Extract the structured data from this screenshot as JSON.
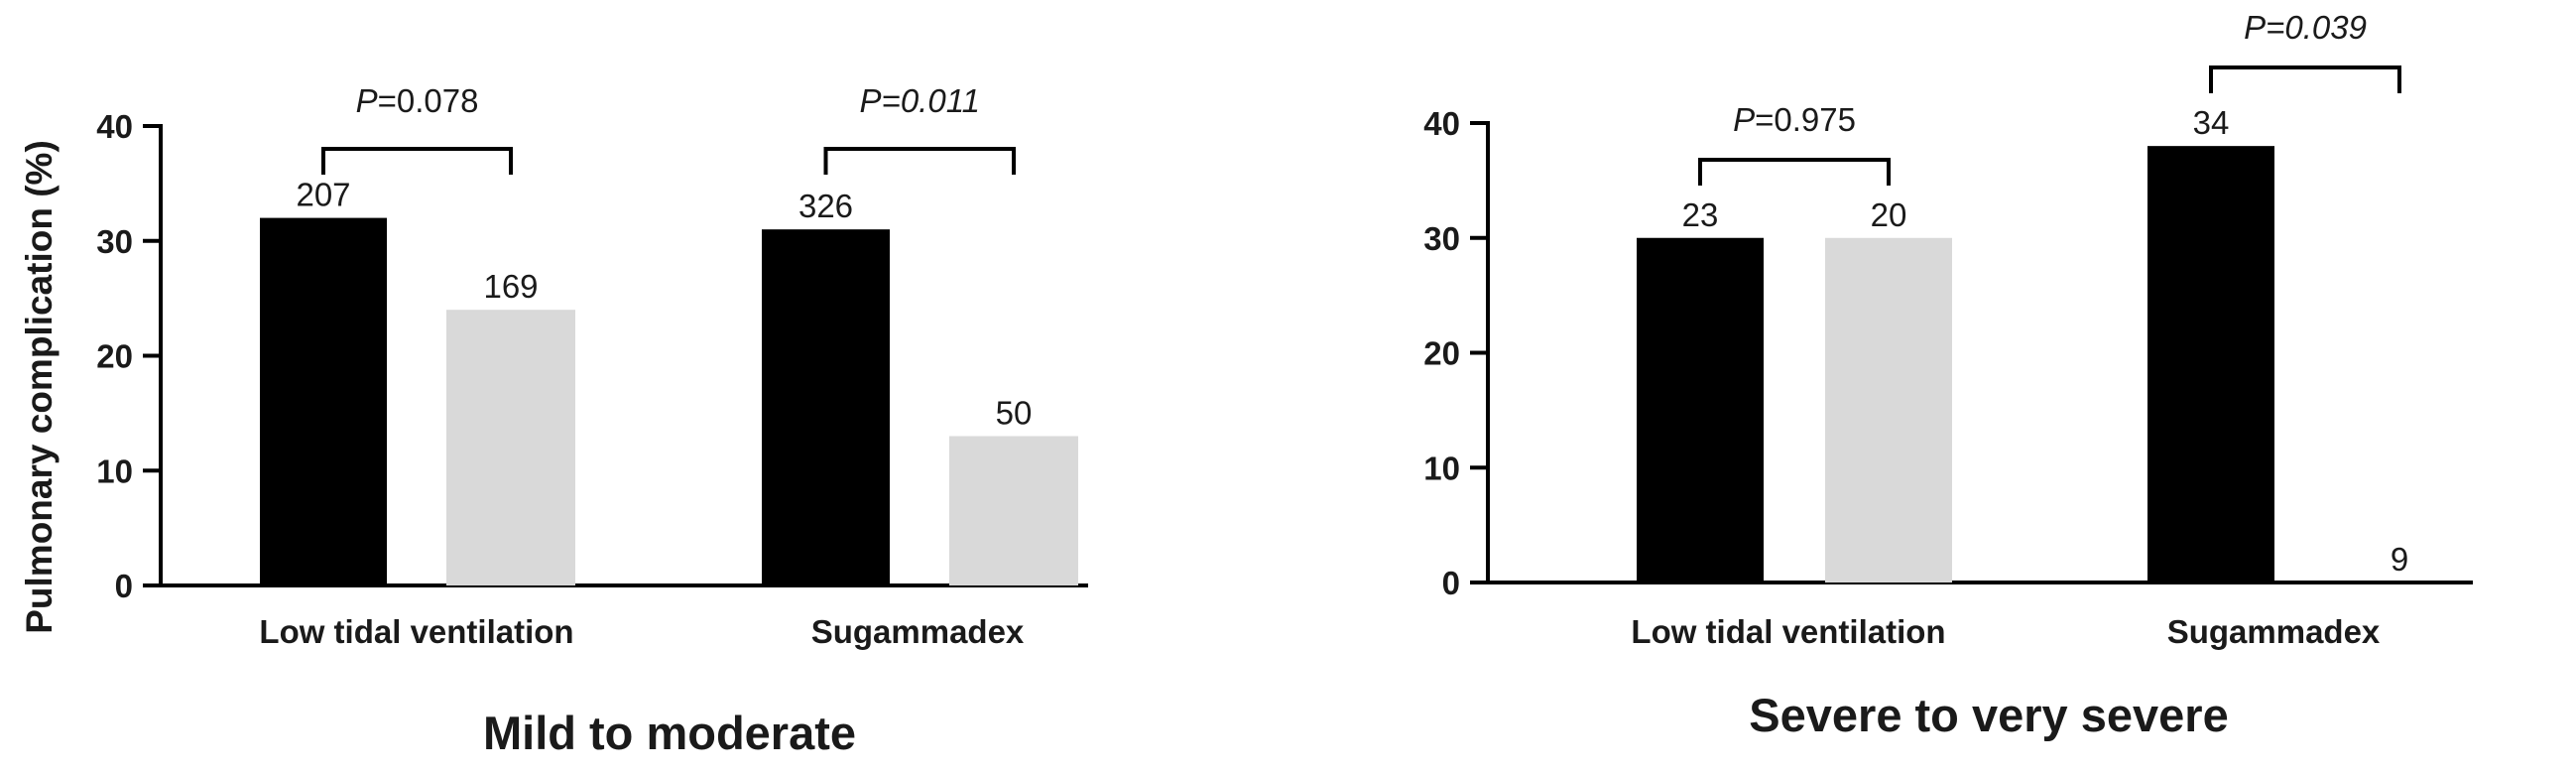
{
  "chart_data": [
    {
      "type": "bar",
      "title": "Mild to moderate",
      "ylabel": "Pulmonary complication  (%)",
      "xlabel": "",
      "ylim": [
        0,
        40
      ],
      "yticks": [
        "0",
        "10",
        "20",
        "30",
        "40"
      ],
      "categories": [
        "Low tidal ventilation",
        "Sugammadex"
      ],
      "series": [
        {
          "color": "#000000",
          "values": [
            32,
            31
          ],
          "labels": [
            "207",
            "326"
          ]
        },
        {
          "color": "#d9d9d9",
          "values": [
            24,
            13
          ],
          "labels": [
            "169",
            "50"
          ]
        }
      ],
      "comparisons": [
        {
          "p_letter": "P",
          "p_value": "=0.078",
          "italic_value": false
        },
        {
          "p_letter": "P",
          "p_value": "=0.011",
          "italic_value": true
        }
      ]
    },
    {
      "type": "bar",
      "title": "Severe to very severe",
      "ylabel": "",
      "xlabel": "",
      "ylim": [
        0,
        40
      ],
      "yticks": [
        "0",
        "10",
        "20",
        "30",
        "40"
      ],
      "categories": [
        "Low tidal ventilation",
        "Sugammadex"
      ],
      "series": [
        {
          "color": "#000000",
          "values": [
            30,
            38
          ],
          "labels": [
            "23",
            "34"
          ]
        },
        {
          "color": "#d9d9d9",
          "values": [
            30,
            0
          ],
          "labels": [
            "20",
            "9"
          ]
        }
      ],
      "comparisons": [
        {
          "p_letter": "P",
          "p_value": "=0.975",
          "italic_value": false
        },
        {
          "p_letter": "P",
          "p_value": "=0.039",
          "italic_value": true
        }
      ]
    }
  ]
}
